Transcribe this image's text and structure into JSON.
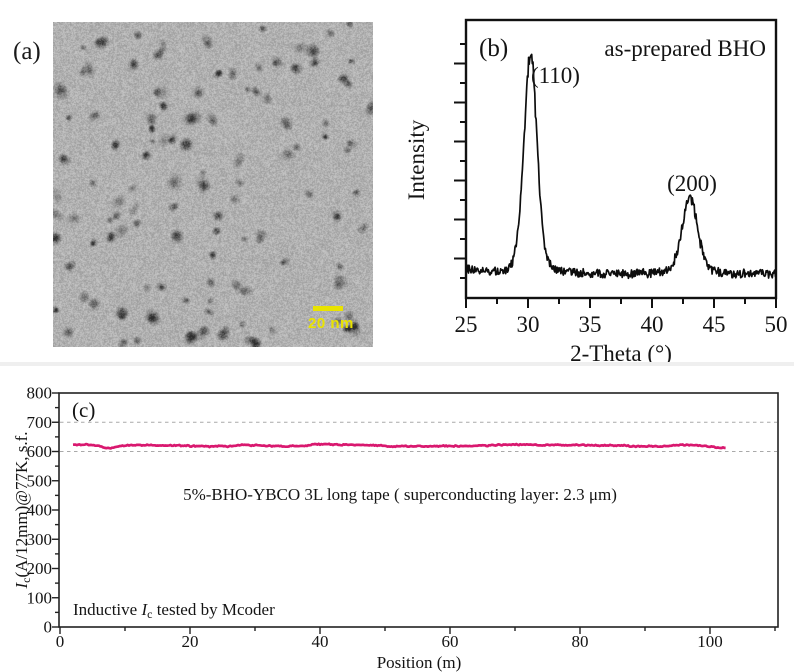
{
  "figure": {
    "panel_a": {
      "label": "(a)",
      "description": "TEM image of nanoparticles",
      "scale_bar_label": "20 nm"
    },
    "panel_b": {
      "label": "(b)",
      "annotation": "as-prepared BHO",
      "peak_label_1": "(110)",
      "peak_label_2": "(200)",
      "xlabel": "2-Theta (°)",
      "ylabel": "Intensity",
      "x_ticks": [
        "25",
        "30",
        "35",
        "40",
        "45",
        "50"
      ]
    },
    "panel_c": {
      "label": "(c)",
      "annotation": "5%-BHO-YBCO 3L long tape ( superconducting layer: 2.3 μm)",
      "note": {
        "prefix": "Inductive ",
        "symbol": "I",
        "sub": "c",
        "suffix": " tested by Mcoder"
      },
      "xlabel": "Position (m)",
      "ylabel": {
        "symbol": "I",
        "sub": "c",
        "rest": "(A/12mm)@77K, s.f."
      },
      "x_ticks": [
        "0",
        "20",
        "40",
        "60",
        "80",
        "100"
      ],
      "y_ticks": [
        "0",
        "100",
        "200",
        "300",
        "400",
        "500",
        "600",
        "700",
        "800"
      ]
    }
  },
  "colors": {
    "line_black": "#0d0d0d",
    "accent_pink": "#d9186f",
    "grid_gray": "#a9a9a9",
    "scalebar_yellow": "#e9e300"
  },
  "chart_data": [
    {
      "type": "line",
      "panel": "b",
      "description": "XRD pattern of as-prepared BHO nanoparticles",
      "title": "as-prepared BHO",
      "xlabel": "2-Theta (°)",
      "ylabel": "Intensity",
      "xlim": [
        25,
        50
      ],
      "x_ticks": [
        25,
        30,
        35,
        40,
        45,
        50
      ],
      "grid": false,
      "series": [
        {
          "name": "XRD intensity",
          "baseline_rel": 0.085,
          "noise_rel": 0.03,
          "peaks": [
            {
              "label": "(110)",
              "center": 30.2,
              "height_rel": 0.8,
              "sigma": 0.55
            },
            {
              "label": "(200)",
              "center": 43.05,
              "height_rel": 0.28,
              "sigma": 0.65
            }
          ]
        }
      ]
    },
    {
      "type": "line",
      "panel": "c",
      "description": "Inductive critical current along 5%-BHO-YBCO 3L long tape",
      "xlabel": "Position (m)",
      "ylabel": "Ic(A/12mm)@77K, s.f.",
      "xlim": [
        0,
        110
      ],
      "ylim": [
        0,
        800
      ],
      "x_ticks": [
        0,
        20,
        40,
        60,
        80,
        100
      ],
      "y_ticks": [
        0,
        100,
        200,
        300,
        400,
        500,
        600,
        700,
        800
      ],
      "gridlines_y": [
        600,
        700
      ],
      "annotation": "5%-BHO-YBCO 3L long tape ( superconducting layer: 2.3 μm)",
      "note": "Inductive Ic tested by Mcoder",
      "series": [
        {
          "name": "Inductive Ic",
          "x_start": 2,
          "x_end": 102.5,
          "mean": 620,
          "noise_amplitude": 5,
          "dip": {
            "x": 7.6,
            "depth": 11
          },
          "end_value": 612
        }
      ]
    }
  ]
}
